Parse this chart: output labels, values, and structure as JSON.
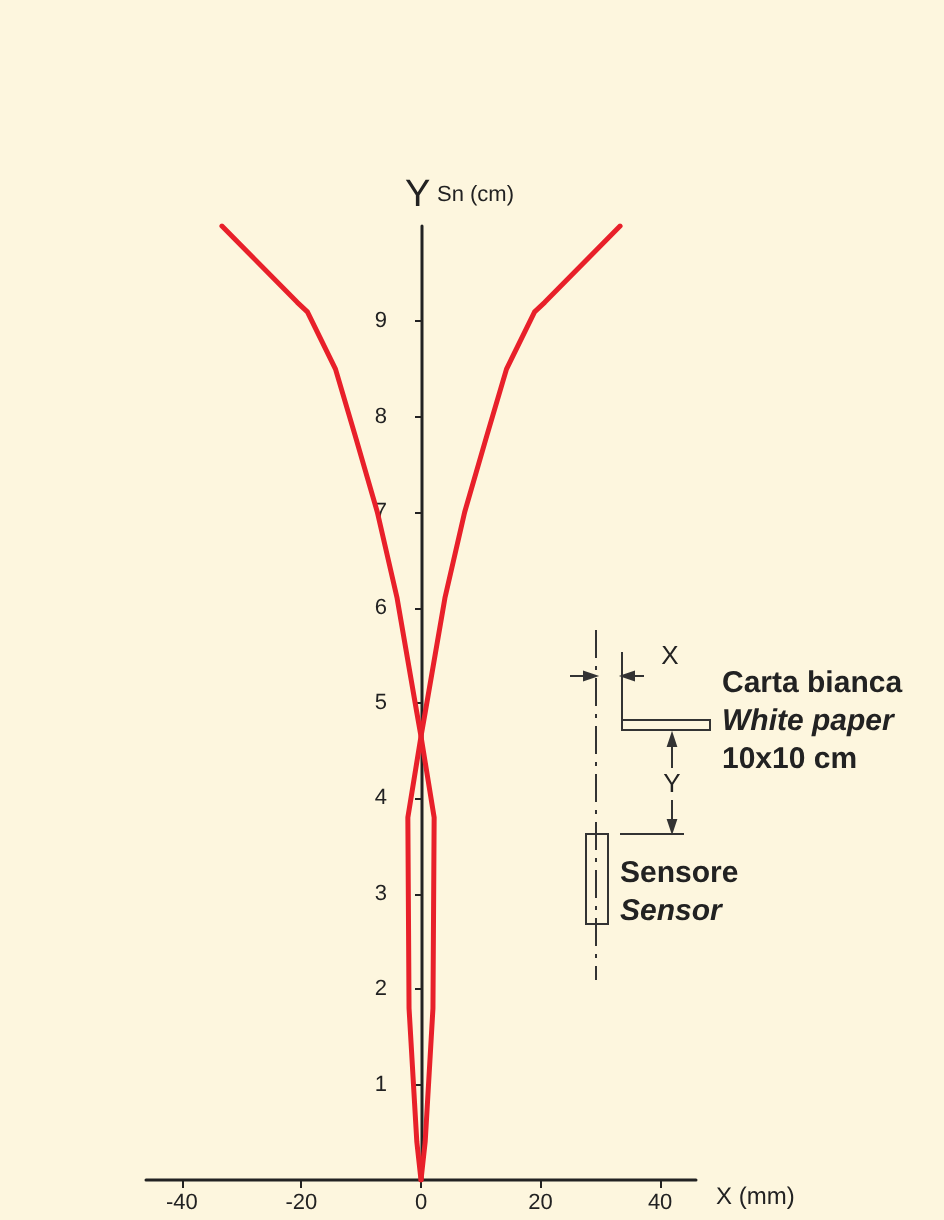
{
  "chart_data": {
    "type": "line",
    "xlabel": "X (mm)",
    "ylabel": "Y Sn (cm)",
    "xlim": [
      -46,
      46
    ],
    "xticks": [
      -40,
      -20,
      0,
      20,
      40
    ],
    "ylim": [
      0,
      10
    ],
    "yticks": [
      1,
      2,
      3,
      4,
      5,
      6,
      7,
      8,
      9
    ],
    "grid": false,
    "marker": "none",
    "line_style": "solid",
    "series": [
      {
        "color": "#e8202a",
        "x": [
          0,
          -0.7,
          -2,
          -2.2,
          0,
          0.7,
          4,
          7.3,
          11,
          14.3,
          19,
          20.7,
          33.3
        ],
        "values": [
          0,
          0.4,
          1.8,
          3.8,
          4.65,
          4.9,
          6.1,
          7.0,
          7.8,
          8.5,
          9.1,
          9.2,
          10
        ]
      },
      {
        "color": "#e8202a",
        "x": [
          0,
          0.7,
          2,
          2.2,
          0,
          -0.7,
          -4,
          -7.3,
          -11,
          -14.3,
          -19,
          -20.7,
          -33.3
        ],
        "values": [
          0,
          0.4,
          1.8,
          3.8,
          4.65,
          4.9,
          6.1,
          7.0,
          7.8,
          8.5,
          9.1,
          9.2,
          10
        ]
      }
    ],
    "annotations": [
      "X",
      "Y",
      "Carta bianca",
      "White paper",
      "10x10 cm",
      "Sensore",
      "Sensor"
    ]
  }
}
